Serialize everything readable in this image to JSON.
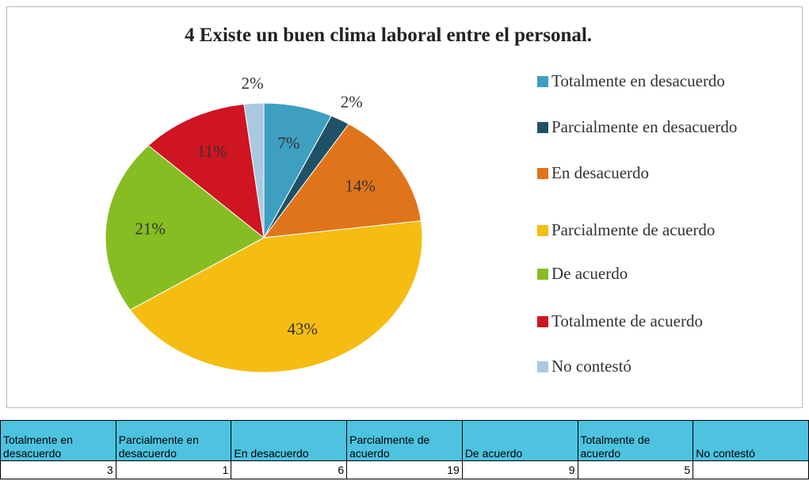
{
  "chart_data": {
    "type": "pie",
    "title": "4 Existe un buen clima laboral entre el personal.",
    "categories": [
      "Totalmente en desacuerdo",
      "Parcialmente en desacuerdo",
      "En desacuerdo",
      "Parcialmente de acuerdo",
      "De acuerdo",
      "Totalmente de acuerdo",
      "No contestó"
    ],
    "values": [
      7,
      2,
      14,
      43,
      21,
      11,
      2
    ],
    "value_labels": [
      "7%",
      "2%",
      "14%",
      "43%",
      "21%",
      "11%",
      "2%"
    ],
    "colors": [
      "#3f9fc0",
      "#1f5266",
      "#e0741a",
      "#f5bd12",
      "#86bd22",
      "#cf1422",
      "#a9c9e2"
    ]
  },
  "table": {
    "headers": [
      "Totalmente en desacuerdo",
      "Parcialmente en desacuerdo",
      "En desacuerdo",
      "Parcialmente de acuerdo",
      "De acuerdo",
      "Totalmente de acuerdo",
      "No contestó"
    ],
    "values": [
      3,
      1,
      6,
      19,
      9,
      5,
      null
    ]
  }
}
